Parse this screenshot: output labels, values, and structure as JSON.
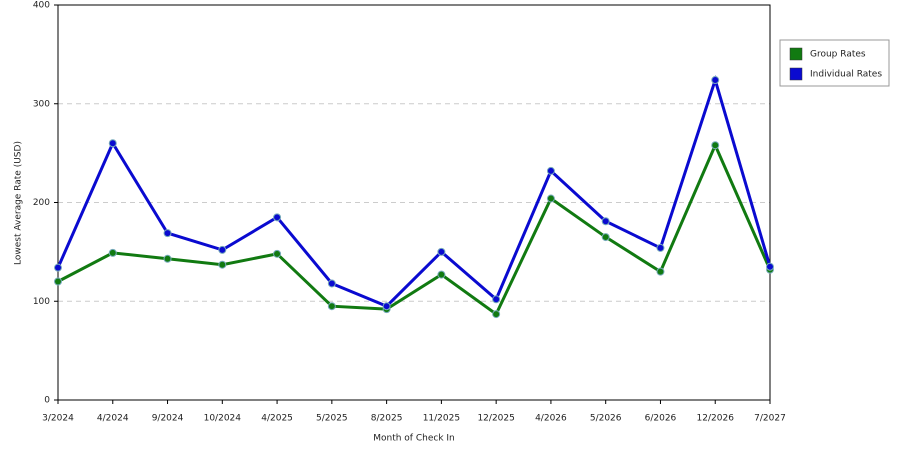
{
  "chart_data": {
    "type": "line",
    "x_label": "Month of Check In",
    "y_label": "Lowest Average Rate (USD)",
    "categories": [
      "3/2024",
      "4/2024",
      "9/2024",
      "10/2024",
      "4/2025",
      "5/2025",
      "8/2025",
      "11/2025",
      "12/2025",
      "4/2026",
      "5/2026",
      "6/2026",
      "12/2026",
      "7/2027"
    ],
    "series": [
      {
        "name": "Group Rates",
        "color": "#117a11",
        "values": [
          120,
          149,
          143,
          137,
          148,
          95,
          92,
          127,
          87,
          204,
          165,
          130,
          258,
          132
        ]
      },
      {
        "name": "Individual Rates",
        "color": "#0a0ad0",
        "values": [
          134,
          260,
          169,
          152,
          185,
          118,
          95,
          150,
          102,
          232,
          181,
          154,
          324,
          135
        ]
      }
    ],
    "ylim": [
      0,
      400
    ],
    "yticks": [
      0,
      100,
      200,
      300,
      400
    ],
    "grid": true,
    "legend": "right"
  }
}
